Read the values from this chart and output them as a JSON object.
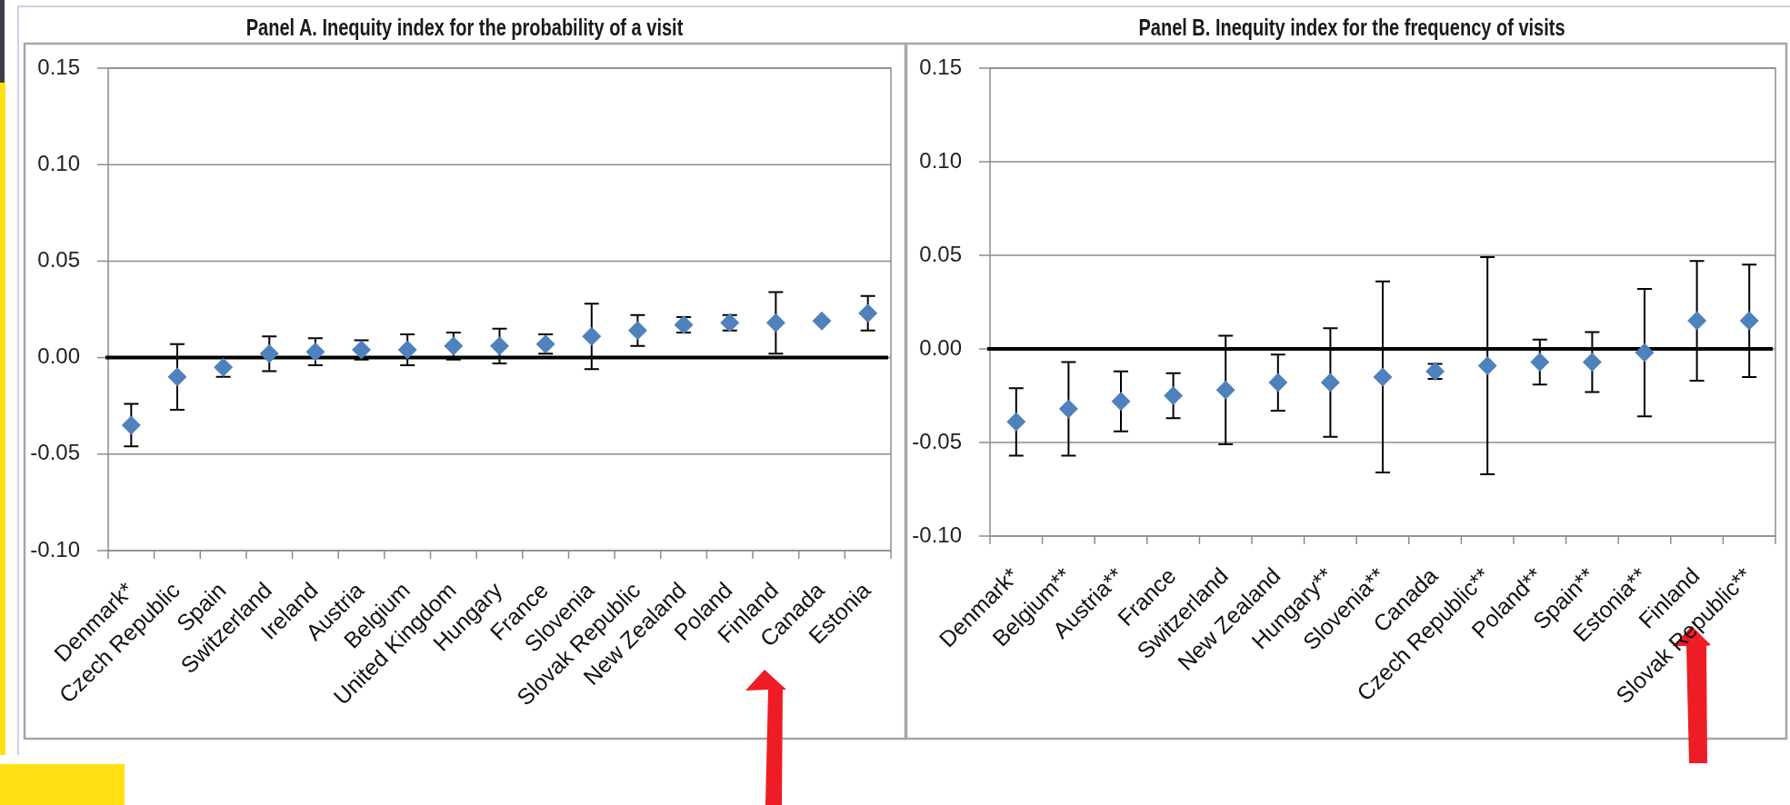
{
  "chart_data": [
    {
      "type": "scatter",
      "title": "Panel A. Inequity index for the probability of a visit",
      "categories": [
        "Denmark*",
        "Czech Republic",
        "Spain",
        "Switzerland",
        "Ireland",
        "Austria",
        "Belgium",
        "United Kingdom",
        "Hungary",
        "France",
        "Slovenia",
        "Slovak Republic",
        "New Zealand",
        "Poland",
        "Finland",
        "Canada",
        "Estonia"
      ],
      "values": [
        -0.035,
        -0.01,
        -0.005,
        0.002,
        0.003,
        0.004,
        0.004,
        0.006,
        0.006,
        0.007,
        0.011,
        0.014,
        0.017,
        0.018,
        0.018,
        0.019,
        0.023
      ],
      "errors": [
        0.011,
        0.017,
        0.005,
        0.009,
        0.007,
        0.005,
        0.008,
        0.007,
        0.009,
        0.005,
        0.017,
        0.008,
        0.004,
        0.004,
        0.016,
        null,
        0.009
      ],
      "color": "#4f81bd",
      "marker": "diamond",
      "ylim": [
        -0.1,
        0.15
      ],
      "yticks": [
        {
          "value": -0.1,
          "label": "-0.10"
        },
        {
          "value": -0.05,
          "label": "-0.05"
        },
        {
          "value": 0,
          "label": "0.00"
        },
        {
          "value": 0.05,
          "label": "0.05"
        },
        {
          "value": 0.1,
          "label": "0.10"
        },
        {
          "value": 0.15,
          "label": "0.15"
        }
      ],
      "grid": "y",
      "ref_lines": [
        {
          "axis": "y",
          "value": 0,
          "color": "#000000"
        }
      ]
    },
    {
      "type": "scatter",
      "title": "Panel B. Inequity index for the frequency of visits",
      "categories": [
        "Denmark*",
        "Belgium**",
        "Austria**",
        "France",
        "Switzerland",
        "New Zealand",
        "Hungary**",
        "Slovenia**",
        "Canada",
        "Czech Republic**",
        "Poland**",
        "Spain**",
        "Estonia**",
        "Finland",
        "Slovak Republic**"
      ],
      "values": [
        -0.039,
        -0.032,
        -0.028,
        -0.025,
        -0.022,
        -0.018,
        -0.018,
        -0.015,
        -0.012,
        -0.009,
        -0.007,
        -0.007,
        -0.002,
        0.015,
        0.015
      ],
      "errors": [
        0.018,
        0.025,
        0.016,
        0.012,
        0.029,
        0.015,
        0.029,
        0.051,
        0.004,
        0.058,
        0.012,
        0.016,
        0.034,
        0.032,
        0.03
      ],
      "color": "#4f81bd",
      "marker": "diamond",
      "ylim": [
        -0.1,
        0.15
      ],
      "yticks": [
        {
          "value": -0.1,
          "label": "-0.10"
        },
        {
          "value": -0.05,
          "label": "-0.05"
        },
        {
          "value": 0,
          "label": "0.00"
        },
        {
          "value": 0.05,
          "label": "0.05"
        },
        {
          "value": 0.1,
          "label": "0.10"
        },
        {
          "value": 0.15,
          "label": "0.15"
        }
      ],
      "grid": "y",
      "ref_lines": [
        {
          "axis": "y",
          "value": 0,
          "color": "#000000"
        }
      ]
    }
  ]
}
